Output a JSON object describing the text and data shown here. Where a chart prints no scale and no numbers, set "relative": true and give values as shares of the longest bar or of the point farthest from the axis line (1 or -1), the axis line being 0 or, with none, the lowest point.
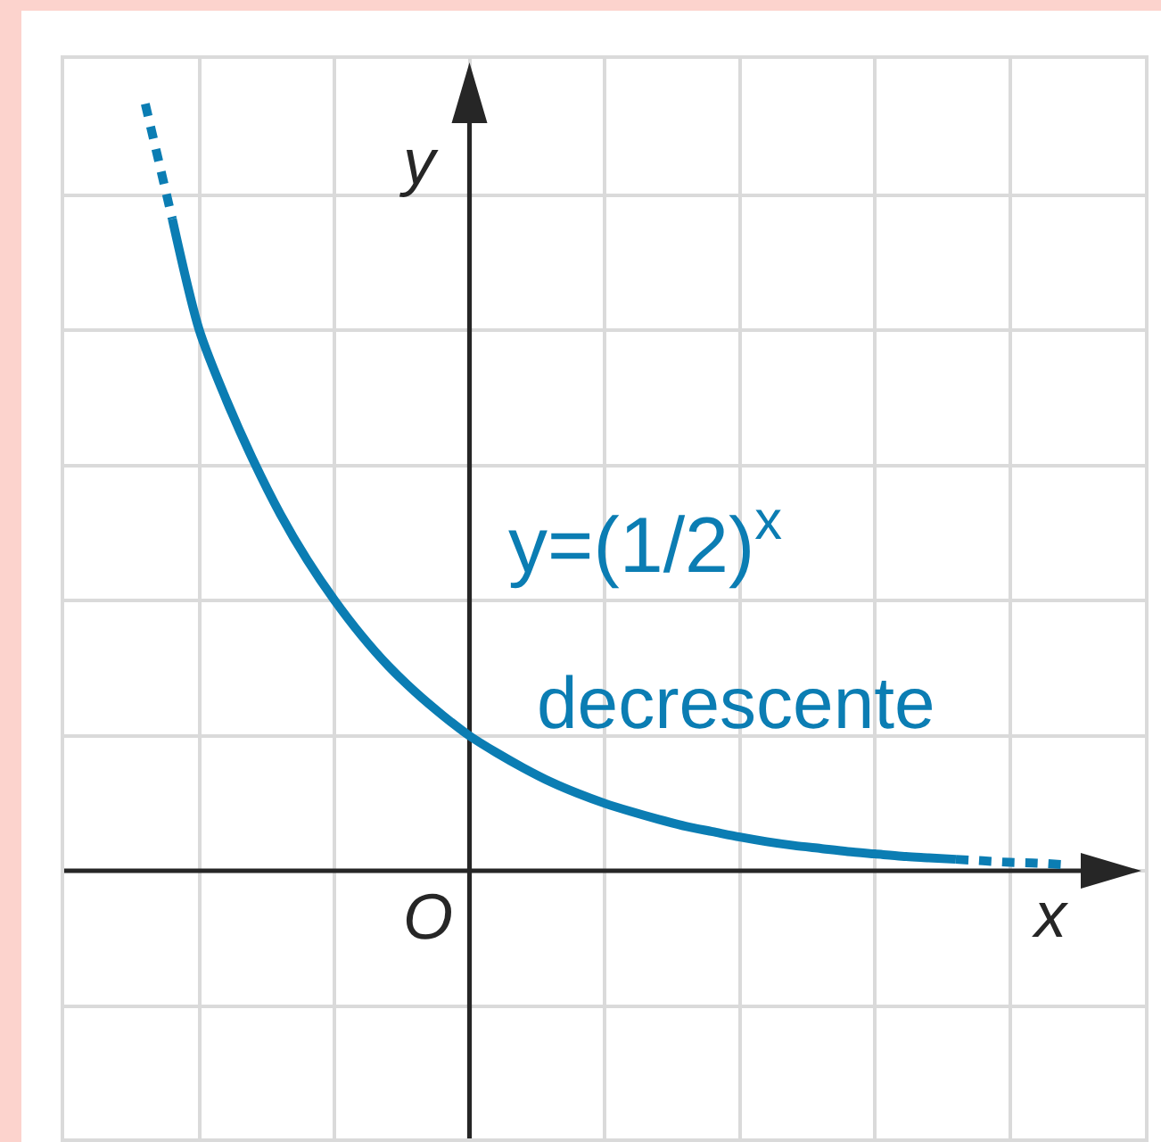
{
  "chart_data": {
    "type": "line",
    "relative": true,
    "xlabel": "x",
    "ylabel": "y",
    "grid": true,
    "annotations": [
      "O",
      "y=(1/2)$^{x}$",
      "decrescente"
    ],
    "categories": [
      null,
      null,
      null,
      null,
      null,
      null,
      null,
      null,
      null,
      null,
      null,
      null,
      null,
      null,
      null,
      null,
      null,
      null,
      null,
      null,
      null,
      null,
      null,
      null,
      null,
      null,
      null,
      null,
      null,
      null,
      null,
      null,
      null,
      null,
      null
    ],
    "series": [
      {
        "color": "#0b7db3",
        "line_style": "dotted",
        "values": [
          1.0,
          0.85,
          null,
          null,
          null,
          null,
          null,
          null,
          null,
          null,
          null,
          null,
          null,
          null,
          null,
          null,
          null,
          null,
          null,
          null,
          null,
          null,
          null,
          null,
          null,
          null,
          null,
          null,
          null,
          null,
          null,
          null,
          null,
          null,
          null
        ]
      },
      {
        "color": "#0b7db3",
        "line_style": "solid",
        "values": [
          null,
          0.85,
          0.705,
          0.614,
          0.535,
          0.465,
          0.405,
          0.353,
          0.307,
          0.267,
          0.233,
          0.203,
          0.176,
          0.154,
          0.134,
          0.116,
          0.101,
          0.088,
          0.077,
          0.067,
          0.058,
          0.051,
          0.044,
          0.038,
          0.033,
          0.029,
          0.025,
          0.022,
          0.019,
          0.017,
          0.015,
          null,
          null,
          null,
          null
        ]
      },
      {
        "color": "#0b7db3",
        "line_style": "dotted",
        "values": [
          null,
          null,
          null,
          null,
          null,
          null,
          null,
          null,
          null,
          null,
          null,
          null,
          null,
          null,
          null,
          null,
          null,
          null,
          null,
          null,
          null,
          null,
          null,
          null,
          null,
          null,
          null,
          null,
          null,
          null,
          0.015,
          0.013,
          0.011,
          0.01,
          0.008
        ]
      }
    ]
  }
}
